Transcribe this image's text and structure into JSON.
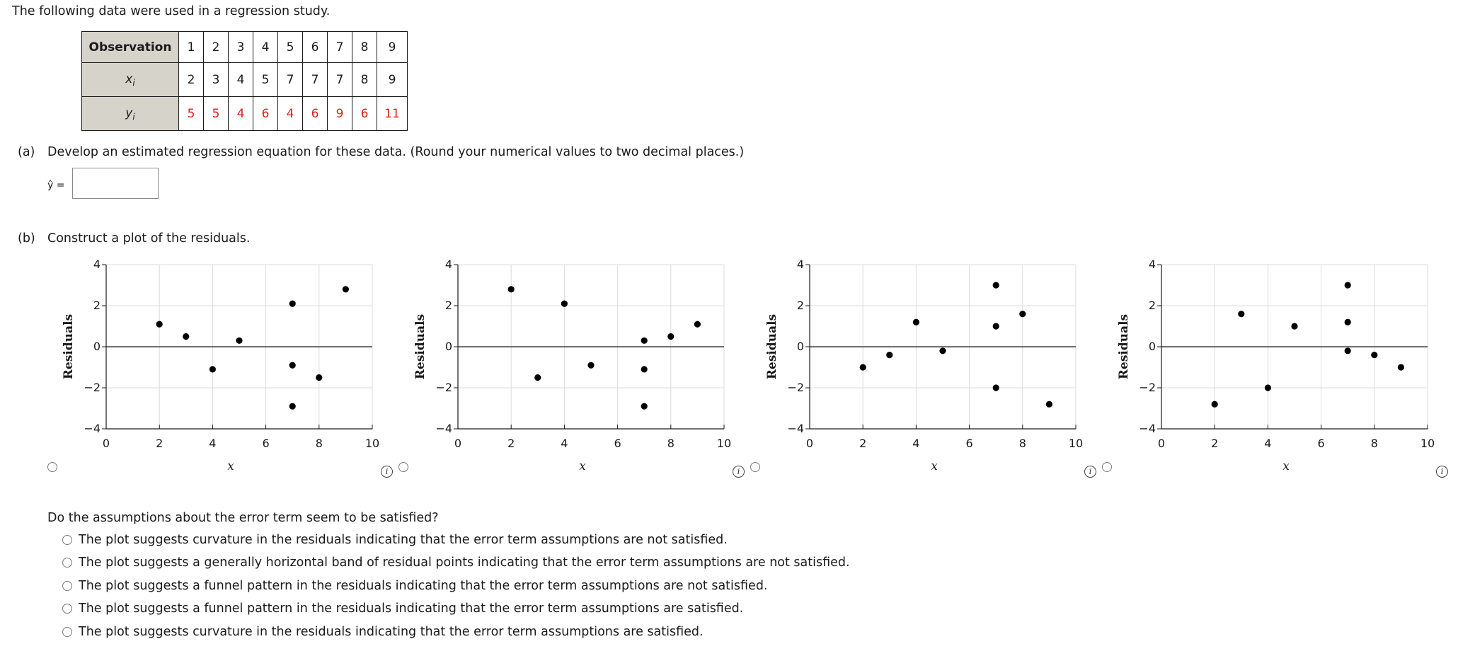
{
  "intro": "The following data were used in a regression study.",
  "table": {
    "row_labels": [
      "Observation",
      "x",
      "y"
    ],
    "subscript": "i",
    "observation": [
      "1",
      "2",
      "3",
      "4",
      "5",
      "6",
      "7",
      "8",
      "9"
    ],
    "x": [
      "2",
      "3",
      "4",
      "5",
      "7",
      "7",
      "7",
      "8",
      "9"
    ],
    "y": [
      "5",
      "5",
      "4",
      "6",
      "4",
      "6",
      "9",
      "6",
      "11"
    ]
  },
  "part_a": {
    "label": "(a)",
    "text": "Develop an estimated regression equation for these data. (Round your numerical values to two decimal places.)",
    "yhat_label": "ŷ =",
    "answer": ""
  },
  "part_b": {
    "label": "(b)",
    "text": "Construct a plot of the residuals."
  },
  "chart_data": [
    {
      "type": "scatter",
      "ylabel": "Residuals",
      "xlabel": "x",
      "xlim": [
        0,
        10
      ],
      "ylim": [
        -4,
        4
      ],
      "x_ticks": [
        "0",
        "2",
        "4",
        "6",
        "8",
        "10"
      ],
      "y_ticks": [
        "−4",
        "−2",
        "0",
        "2",
        "4"
      ],
      "x": [
        2,
        3,
        4,
        5,
        7,
        7,
        7,
        8,
        9
      ],
      "y": [
        1.1,
        0.5,
        -1.1,
        0.3,
        2.1,
        -0.9,
        -2.9,
        -1.5,
        2.8
      ]
    },
    {
      "type": "scatter",
      "ylabel": "Residuals",
      "xlabel": "x",
      "xlim": [
        0,
        10
      ],
      "ylim": [
        -4,
        4
      ],
      "x_ticks": [
        "0",
        "2",
        "4",
        "6",
        "8",
        "10"
      ],
      "y_ticks": [
        "−4",
        "−2",
        "0",
        "2",
        "4"
      ],
      "x": [
        2,
        3,
        4,
        5,
        7,
        7,
        7,
        8,
        9
      ],
      "y": [
        2.8,
        -1.5,
        2.1,
        -0.9,
        0.3,
        -1.1,
        -2.9,
        0.5,
        1.1
      ]
    },
    {
      "type": "scatter",
      "ylabel": "Residuals",
      "xlabel": "x",
      "xlim": [
        0,
        10
      ],
      "ylim": [
        -4,
        4
      ],
      "x_ticks": [
        "0",
        "2",
        "4",
        "6",
        "8",
        "10"
      ],
      "y_ticks": [
        "−4",
        "−2",
        "0",
        "2",
        "4"
      ],
      "x": [
        2,
        3,
        4,
        5,
        7,
        7,
        7,
        8,
        9
      ],
      "y": [
        -1.0,
        -0.4,
        1.2,
        -0.2,
        3.0,
        1.0,
        -2.0,
        1.6,
        -2.8
      ]
    },
    {
      "type": "scatter",
      "ylabel": "Residuals",
      "xlabel": "x",
      "xlim": [
        0,
        10
      ],
      "ylim": [
        -4,
        4
      ],
      "x_ticks": [
        "0",
        "2",
        "4",
        "6",
        "8",
        "10"
      ],
      "y_ticks": [
        "−4",
        "−2",
        "0",
        "2",
        "4"
      ],
      "x": [
        2,
        3,
        4,
        5,
        7,
        7,
        7,
        8,
        9
      ],
      "y": [
        -2.8,
        1.6,
        -2.0,
        1.0,
        3.0,
        1.2,
        -0.2,
        -0.4,
        -1.0
      ]
    }
  ],
  "info_glyph": "i",
  "question": "Do the assumptions about the error term seem to be satisfied?",
  "choices": [
    "The plot suggests curvature in the residuals indicating that the error term assumptions are not satisfied.",
    "The plot suggests a generally horizontal band of residual points indicating that the error term assumptions are not satisfied.",
    "The plot suggests a funnel pattern in the residuals indicating that the error term assumptions are not satisfied.",
    "The plot suggests a funnel pattern in the residuals indicating that the error term assumptions are satisfied.",
    "The plot suggests curvature in the residuals indicating that the error term assumptions are satisfied."
  ]
}
